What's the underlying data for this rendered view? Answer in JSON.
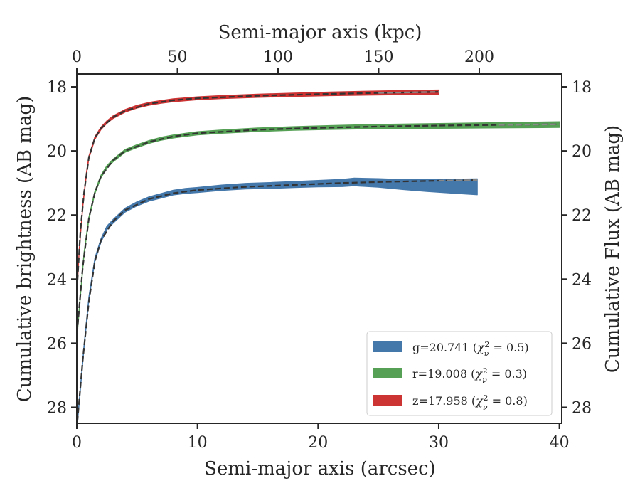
{
  "chart_data": {
    "type": "line",
    "xlabel": "Semi-major axis (arcsec)",
    "ylabel": "Cumulative brightness (AB mag)",
    "x2label": "Semi-major axis (kpc)",
    "y2label": "Cumulative Flux (AB mag)",
    "xlim": [
      0,
      40.2
    ],
    "ylim": [
      28.5,
      17.6
    ],
    "x2lim": [
      0,
      241
    ],
    "x_ticks": [
      "0",
      "10",
      "20",
      "30",
      "40"
    ],
    "x2_ticks": [
      "0",
      "50",
      "100",
      "150",
      "200"
    ],
    "y_ticks": [
      "18",
      "20",
      "22",
      "24",
      "26",
      "28"
    ],
    "y_inverted": true,
    "grid": false,
    "legend_position": "lower-right",
    "series": [
      {
        "name": "g=20.741 (χ²ᵥ = 0.5)",
        "label_main": "g=20.741 (",
        "label_sym": "χ",
        "label_sub": "ν",
        "label_sup": "2",
        "label_eq": " = 0.5)",
        "color": "#4477aa",
        "x_end": 33.2,
        "model_end": 33.2,
        "points": [
          [
            0.05,
            28.5
          ],
          [
            0.3,
            27.4
          ],
          [
            0.6,
            26.1
          ],
          [
            1.0,
            24.6
          ],
          [
            1.5,
            23.4
          ],
          [
            2.0,
            22.8
          ],
          [
            2.5,
            22.4
          ],
          [
            3.0,
            22.2
          ],
          [
            4.0,
            21.85
          ],
          [
            5.0,
            21.65
          ],
          [
            6.0,
            21.5
          ],
          [
            7.0,
            21.4
          ],
          [
            8.0,
            21.3
          ],
          [
            9.0,
            21.25
          ],
          [
            10.0,
            21.22
          ],
          [
            12.0,
            21.15
          ],
          [
            14.0,
            21.1
          ],
          [
            16.0,
            21.08
          ],
          [
            18.0,
            21.05
          ],
          [
            20.0,
            21.02
          ],
          [
            22.0,
            21.0
          ],
          [
            23.0,
            20.97
          ],
          [
            25.0,
            21.0
          ],
          [
            27.0,
            21.05
          ],
          [
            29.0,
            21.08
          ],
          [
            31.0,
            21.1
          ],
          [
            33.2,
            21.12
          ]
        ],
        "widths": [
          [
            0,
            0.05
          ],
          [
            10,
            0.08
          ],
          [
            20,
            0.1
          ],
          [
            26,
            0.14
          ],
          [
            30,
            0.2
          ],
          [
            33.2,
            0.25
          ]
        ],
        "model": [
          [
            0.05,
            28.45
          ],
          [
            0.5,
            26.5
          ],
          [
            1.0,
            24.7
          ],
          [
            1.5,
            23.45
          ],
          [
            2.0,
            22.8
          ],
          [
            3.0,
            22.2
          ],
          [
            4.0,
            21.85
          ],
          [
            6.0,
            21.5
          ],
          [
            8.0,
            21.32
          ],
          [
            10.0,
            21.22
          ],
          [
            14.0,
            21.12
          ],
          [
            18.0,
            21.06
          ],
          [
            22.0,
            21.0
          ],
          [
            26.0,
            20.96
          ],
          [
            30.0,
            20.93
          ],
          [
            33.2,
            20.91
          ]
        ]
      },
      {
        "name": "r=19.008 (χ²ᵥ = 0.3)",
        "label_main": "r=19.008 (",
        "label_sym": "χ",
        "label_sub": "ν",
        "label_sup": "2",
        "label_eq": " = 0.3)",
        "color": "#55a055",
        "x_end": 40.0,
        "model_end": 40.0,
        "points": [
          [
            0.02,
            25.8
          ],
          [
            0.3,
            24.5
          ],
          [
            0.6,
            23.2
          ],
          [
            1.0,
            22.1
          ],
          [
            1.5,
            21.3
          ],
          [
            2.0,
            20.8
          ],
          [
            2.5,
            20.5
          ],
          [
            3.0,
            20.3
          ],
          [
            4.0,
            20.0
          ],
          [
            5.0,
            19.85
          ],
          [
            6.0,
            19.72
          ],
          [
            7.0,
            19.62
          ],
          [
            8.0,
            19.55
          ],
          [
            9.0,
            19.5
          ],
          [
            10.0,
            19.45
          ],
          [
            12.0,
            19.4
          ],
          [
            15.0,
            19.34
          ],
          [
            18.0,
            19.3
          ],
          [
            21.0,
            19.27
          ],
          [
            25.0,
            19.24
          ],
          [
            30.0,
            19.22
          ],
          [
            35.0,
            19.2
          ],
          [
            40.0,
            19.18
          ]
        ],
        "widths": [
          [
            0,
            0.04
          ],
          [
            20,
            0.06
          ],
          [
            40,
            0.09
          ]
        ],
        "model": [
          [
            0.02,
            25.7
          ],
          [
            0.5,
            23.6
          ],
          [
            1.0,
            22.1
          ],
          [
            1.5,
            21.3
          ],
          [
            2.0,
            20.8
          ],
          [
            3.0,
            20.3
          ],
          [
            4.0,
            20.0
          ],
          [
            6.0,
            19.72
          ],
          [
            8.0,
            19.55
          ],
          [
            10.0,
            19.45
          ],
          [
            15.0,
            19.34
          ],
          [
            20.0,
            19.28
          ],
          [
            25.0,
            19.24
          ],
          [
            30.0,
            19.21
          ],
          [
            35.0,
            19.19
          ],
          [
            40.0,
            19.17
          ]
        ]
      },
      {
        "name": "z=17.958 (χ²ᵥ = 0.8)",
        "label_main": "z=17.958 (",
        "label_sym": "χ",
        "label_sub": "ν",
        "label_sup": "2",
        "label_eq": " = 0.8)",
        "color": "#cc3333",
        "x_end": 30.0,
        "model_end": 30.0,
        "points": [
          [
            0.02,
            24.4
          ],
          [
            0.2,
            23.1
          ],
          [
            0.5,
            21.7
          ],
          [
            0.8,
            20.7
          ],
          [
            1.0,
            20.2
          ],
          [
            1.5,
            19.6
          ],
          [
            2.0,
            19.3
          ],
          [
            2.5,
            19.1
          ],
          [
            3.0,
            18.95
          ],
          [
            4.0,
            18.75
          ],
          [
            5.0,
            18.62
          ],
          [
            6.0,
            18.53
          ],
          [
            7.0,
            18.47
          ],
          [
            8.0,
            18.42
          ],
          [
            9.0,
            18.39
          ],
          [
            10.0,
            18.36
          ],
          [
            12.0,
            18.32
          ],
          [
            15.0,
            18.28
          ],
          [
            18.0,
            18.25
          ],
          [
            21.0,
            18.22
          ],
          [
            24.0,
            18.2
          ],
          [
            27.0,
            18.18
          ],
          [
            30.0,
            18.17
          ]
        ],
        "widths": [
          [
            0,
            0.04
          ],
          [
            15,
            0.05
          ],
          [
            30,
            0.07
          ]
        ],
        "model": [
          [
            0.02,
            24.3
          ],
          [
            0.3,
            22.5
          ],
          [
            0.6,
            21.3
          ],
          [
            1.0,
            20.2
          ],
          [
            1.5,
            19.6
          ],
          [
            2.0,
            19.3
          ],
          [
            3.0,
            18.95
          ],
          [
            4.0,
            18.75
          ],
          [
            6.0,
            18.53
          ],
          [
            8.0,
            18.42
          ],
          [
            10.0,
            18.36
          ],
          [
            15.0,
            18.28
          ],
          [
            20.0,
            18.23
          ],
          [
            25.0,
            18.19
          ],
          [
            30.0,
            18.16
          ]
        ]
      }
    ]
  }
}
